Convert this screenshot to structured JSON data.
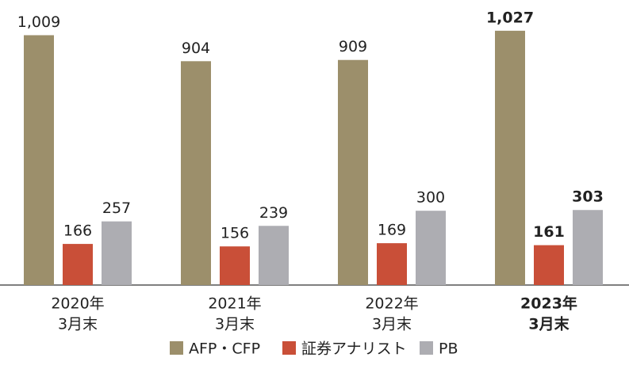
{
  "chart_data": {
    "type": "bar",
    "categories": [
      [
        "2020年",
        "3月末"
      ],
      [
        "2021年",
        "3月末"
      ],
      [
        "2022年",
        "3月末"
      ],
      [
        "2023年",
        "3月末"
      ]
    ],
    "series": [
      {
        "name": "AFP・CFP",
        "color": "#9c8f6b",
        "values": [
          1009,
          904,
          909,
          1027
        ],
        "value_labels": [
          "1,009",
          "904",
          "909",
          "1,027"
        ]
      },
      {
        "name": "証券アナリスト",
        "color": "#c94f38",
        "values": [
          166,
          156,
          169,
          161
        ]
      },
      {
        "name": "PB",
        "color": "#adadb2",
        "values": [
          257,
          239,
          300,
          303
        ]
      }
    ],
    "ylim": [
      0,
      1100
    ],
    "highlight_category": 3
  }
}
